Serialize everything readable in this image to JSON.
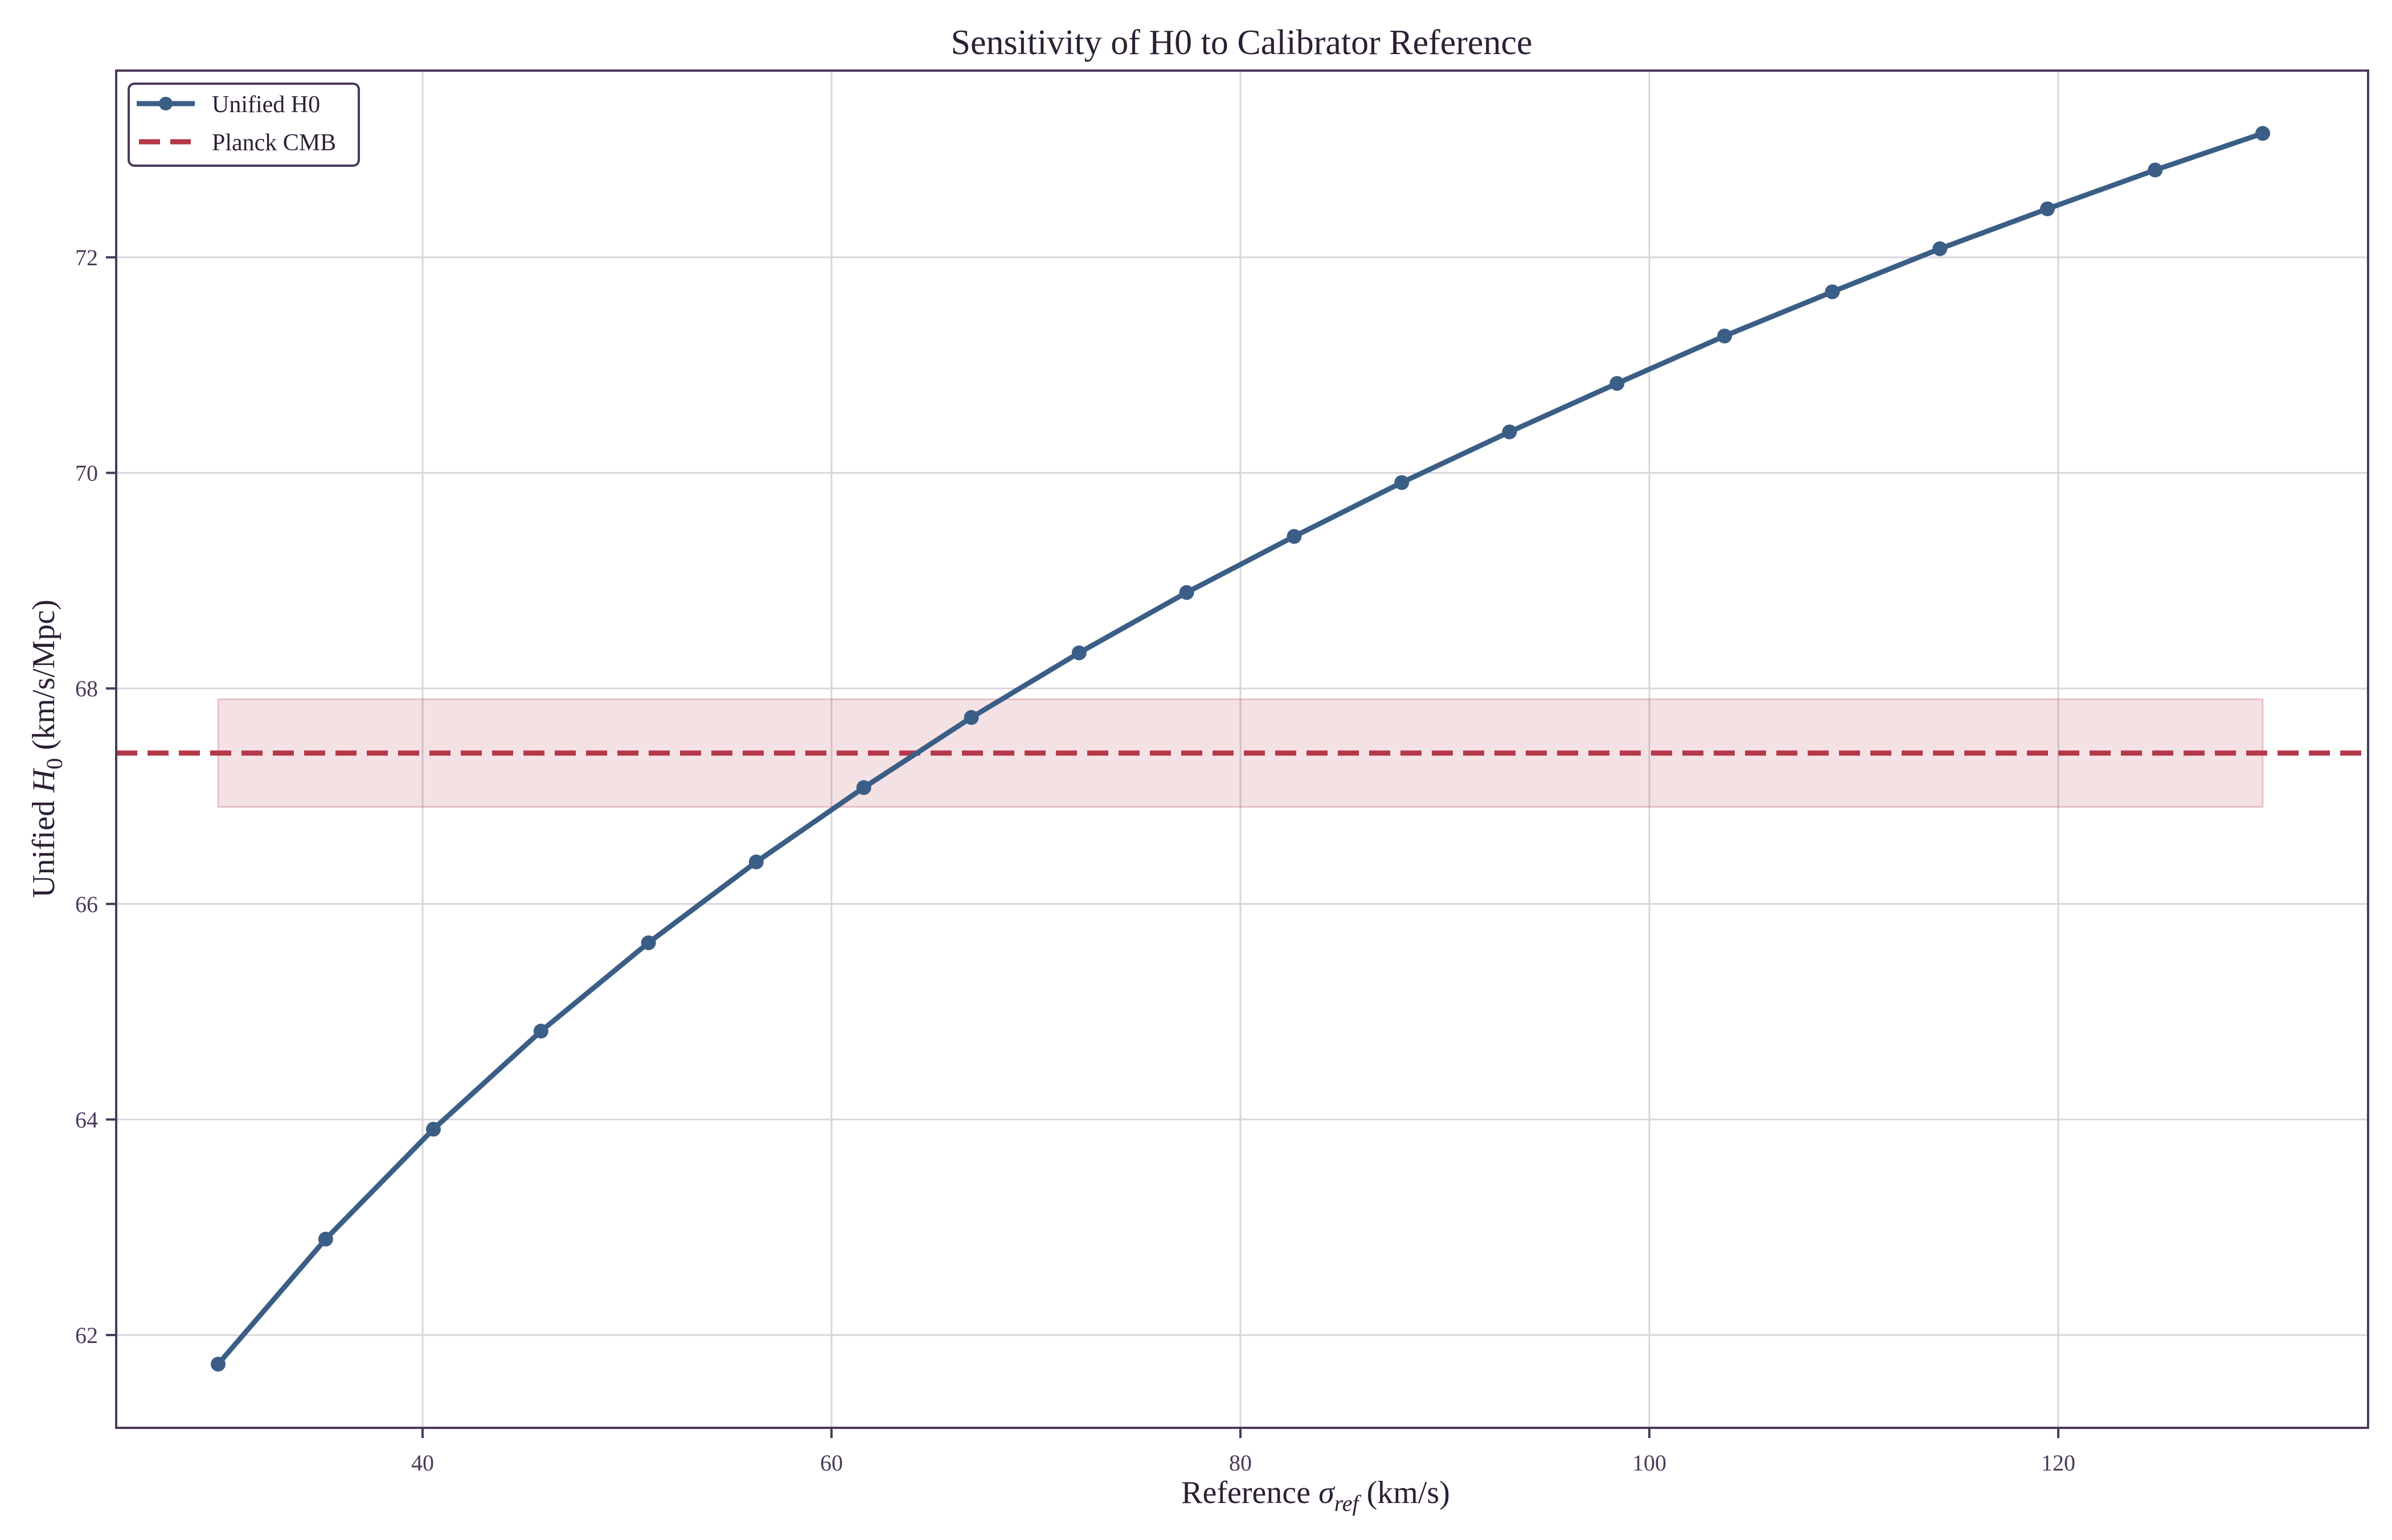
{
  "chart_data": {
    "type": "line",
    "title": "Sensitivity of H0 to Calibrator Reference",
    "xlabel": "Reference σ_ref (km/s)",
    "xlabel_parts": {
      "prefix": "Reference ",
      "symbol": "σ",
      "subscript": "ref",
      "suffix": " (km/s)"
    },
    "ylabel": "Unified H_0 (km/s/Mpc)",
    "ylabel_parts": {
      "prefix": "Unified ",
      "symbol": "H",
      "subscript": "0",
      "suffix": " (km/s/Mpc)"
    },
    "xlim": [
      25,
      135
    ],
    "ylim": [
      61.15,
      73.7
    ],
    "xticks": [
      40,
      60,
      80,
      100,
      120
    ],
    "yticks": [
      62,
      64,
      66,
      68,
      70,
      72
    ],
    "grid": true,
    "legend_position": "upper left",
    "series": [
      {
        "name": "Unified H0",
        "color": "#3b5e86",
        "style": "solid",
        "marker": "circle",
        "x": [
          30.0,
          35.26,
          40.53,
          45.79,
          51.05,
          56.32,
          61.58,
          66.84,
          72.11,
          77.37,
          82.63,
          87.89,
          93.16,
          98.42,
          103.68,
          108.95,
          114.21,
          119.47,
          124.74,
          130.0
        ],
        "values": [
          61.73,
          62.89,
          63.91,
          64.82,
          65.64,
          66.39,
          67.08,
          67.73,
          68.33,
          68.89,
          69.41,
          69.91,
          70.38,
          70.83,
          71.27,
          71.68,
          72.08,
          72.45,
          72.81,
          73.15
        ]
      },
      {
        "name": "Planck CMB",
        "color": "#b5384a",
        "style": "dashed",
        "value": 67.4,
        "band": {
          "x": [
            30,
            130
          ],
          "low": 66.9,
          "high": 67.9,
          "color": "#b5384a",
          "alpha": 0.15
        }
      }
    ]
  },
  "legend": {
    "items": [
      {
        "label": "Unified H0"
      },
      {
        "label": "Planck CMB"
      }
    ]
  },
  "colors": {
    "axis": "#4a3a5a",
    "grid": "#d8d4dc",
    "text": "#2d1f35",
    "tick_text": "#4a3a5a"
  }
}
